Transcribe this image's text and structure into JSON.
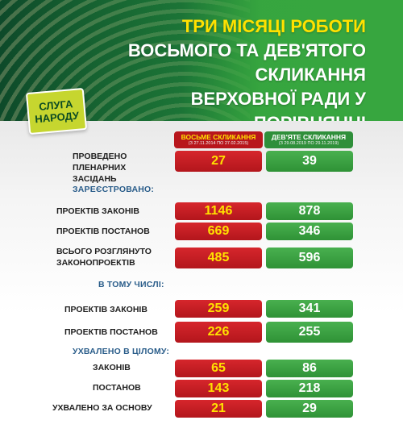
{
  "header": {
    "title_lines": [
      "ТРИ МІСЯЦІ РОБОТИ",
      "ВОСЬМОГО ТА ДЕВ'ЯТОГО СКЛИКАННЯ",
      "ВЕРХОВНОЇ РАДИ У ПОРІВНЯННІ"
    ],
    "party_lines": [
      "СЛУГА",
      "НАРОДУ"
    ]
  },
  "columns": {
    "eighth": {
      "title": "ВОСЬМЕ СКЛИКАННЯ",
      "period": "(З 27.11.2014 ПО 27.02.2015)"
    },
    "ninth": {
      "title": "ДЕВ'ЯТЕ СКЛИКАННЯ",
      "period": "(З 29.08.2019 ПО 29.11.2019)"
    }
  },
  "sections": {
    "registered": "ЗАРЕЄСТРОВАНО:",
    "including": "В ТОМУ ЧИСЛІ:",
    "adopted": "УХВАЛЕНО В ЦІЛОМУ:"
  },
  "colors": {
    "eighth": "#c11c22",
    "ninth": "#3a9d42",
    "label_yellow": "#ffe100"
  },
  "chart_data": {
    "type": "table",
    "title": "ТРИ МІСЯЦІ РОБОТИ ВОСЬМОГО ТА ДЕВ'ЯТОГО СКЛИКАННЯ ВЕРХОВНОЇ РАДИ У ПОРІВНЯННІ",
    "series": [
      {
        "name": "ВОСЬМЕ СКЛИКАННЯ",
        "values": [
          27,
          1146,
          669,
          485,
          259,
          226,
          65,
          143,
          21
        ]
      },
      {
        "name": "ДЕВ'ЯТЕ СКЛИКАННЯ",
        "values": [
          39,
          878,
          346,
          596,
          341,
          255,
          86,
          218,
          29
        ]
      }
    ],
    "rows": [
      {
        "label": "ПРОВЕДЕНО ПЛЕНАРНИХ ЗАСІДАНЬ",
        "eighth": "27",
        "ninth": "39"
      },
      {
        "label": "ПРОЕКТІВ ЗАКОНІВ",
        "eighth": "1146",
        "ninth": "878"
      },
      {
        "label": "ПРОЕКТІВ ПОСТАНОВ",
        "eighth": "669",
        "ninth": "346"
      },
      {
        "label": "ВСЬОГО РОЗГЛЯНУТО ЗАКОНОПРОЕКТІВ",
        "eighth": "485",
        "ninth": "596"
      },
      {
        "label": "ПРОЕКТІВ ЗАКОНІВ",
        "eighth": "259",
        "ninth": "341"
      },
      {
        "label": "ПРОЕКТІВ ПОСТАНОВ",
        "eighth": "226",
        "ninth": "255"
      },
      {
        "label": "ЗАКОНІВ",
        "eighth": "65",
        "ninth": "86"
      },
      {
        "label": "ПОСТАНОВ",
        "eighth": "143",
        "ninth": "218"
      },
      {
        "label": "УХВАЛЕНО ЗА ОСНОВУ",
        "eighth": "21",
        "ninth": "29"
      }
    ]
  }
}
